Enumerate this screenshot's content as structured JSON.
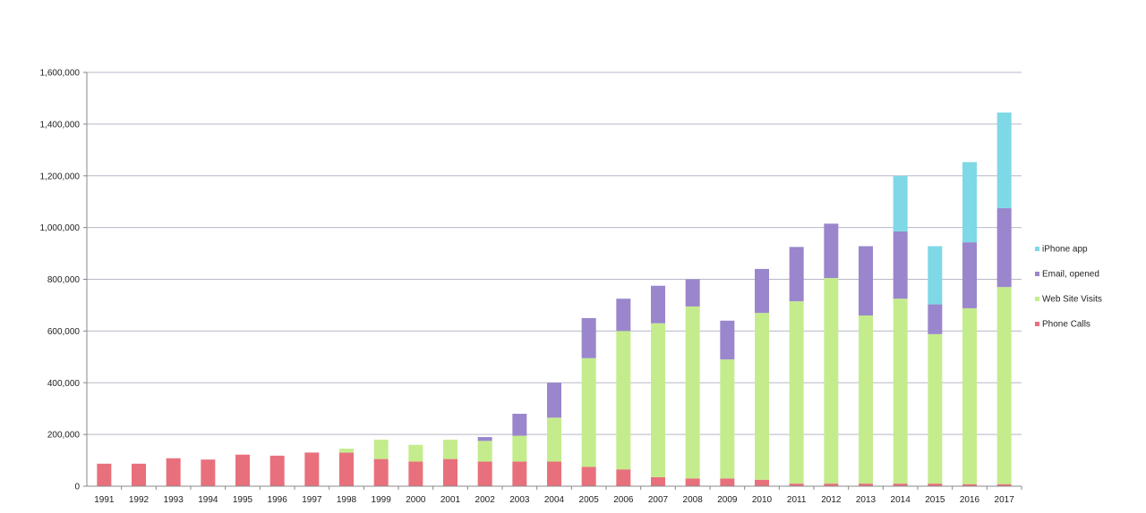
{
  "chart_data": {
    "type": "bar",
    "stacked": true,
    "title": "",
    "xlabel": "",
    "ylabel": "",
    "ylim": [
      0,
      1600000
    ],
    "yticks": [
      "0",
      "200,000",
      "400,000",
      "600,000",
      "800,000",
      "1,000,000",
      "1,200,000",
      "1,400,000",
      "1,600,000"
    ],
    "grid": true,
    "legend_position": "right",
    "categories": [
      "1991",
      "1992",
      "1993",
      "1994",
      "1995",
      "1996",
      "1997",
      "1998",
      "1999",
      "2000",
      "2001",
      "2002",
      "2003",
      "2004",
      "2005",
      "2006",
      "2007",
      "2008",
      "2009",
      "2010",
      "2011",
      "2012",
      "2013",
      "2014",
      "2015",
      "2016",
      "2017"
    ],
    "series": [
      {
        "name": "Phone Calls",
        "color": "#e8707c",
        "values": [
          87000,
          87000,
          108000,
          103000,
          122000,
          118000,
          130000,
          130000,
          105000,
          95000,
          105000,
          95000,
          95000,
          95000,
          75000,
          65000,
          35000,
          30000,
          30000,
          25000,
          10000,
          10000,
          10000,
          10000,
          10000,
          8000,
          8000
        ]
      },
      {
        "name": "Web Site Visits",
        "color": "#c5ec8c",
        "values": [
          0,
          0,
          0,
          0,
          0,
          0,
          0,
          15000,
          75000,
          65000,
          75000,
          80000,
          100000,
          170000,
          420000,
          535000,
          595000,
          665000,
          460000,
          645000,
          705000,
          795000,
          650000,
          715000,
          578000,
          680000,
          762000
        ]
      },
      {
        "name": "Email, opened",
        "color": "#9a86cc",
        "values": [
          0,
          0,
          0,
          0,
          0,
          0,
          0,
          0,
          0,
          0,
          0,
          15000,
          85000,
          135000,
          155000,
          125000,
          145000,
          105000,
          150000,
          170000,
          210000,
          210000,
          268000,
          260000,
          115000,
          255000,
          305000
        ]
      },
      {
        "name": "iPhone app",
        "color": "#7fd8e6",
        "values": [
          0,
          0,
          0,
          0,
          0,
          0,
          0,
          0,
          0,
          0,
          0,
          0,
          0,
          0,
          0,
          0,
          0,
          0,
          0,
          0,
          0,
          0,
          0,
          215000,
          225000,
          310000,
          370000
        ]
      }
    ],
    "legend_order": [
      "iPhone app",
      "Email, opened",
      "Web Site Visits",
      "Phone Calls"
    ]
  }
}
